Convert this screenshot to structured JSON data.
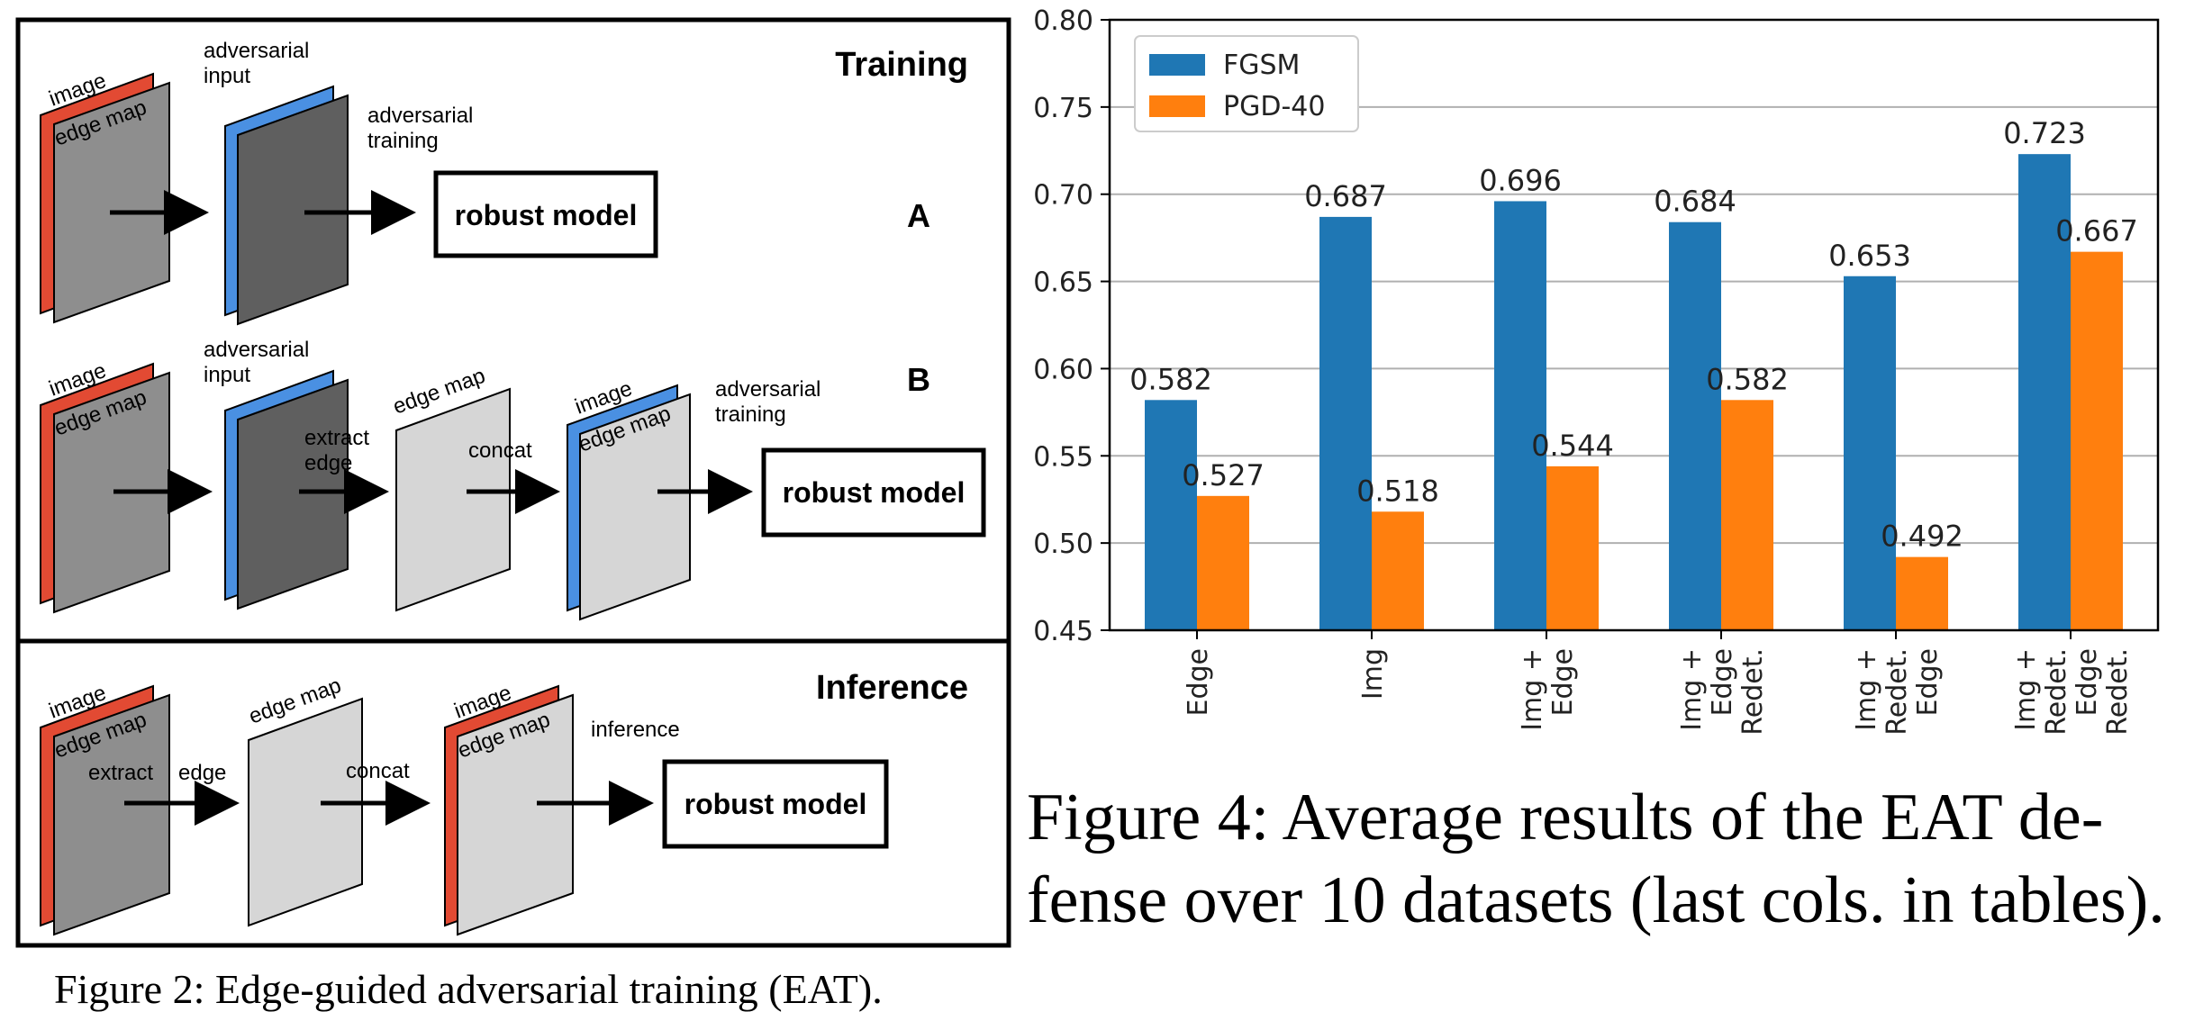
{
  "figure2": {
    "caption": "Figure 2: Edge-guided adversarial training (EAT).",
    "training": {
      "title": "Training",
      "row_a": {
        "tag": "A",
        "image_label": "image",
        "edge_label": "edge map",
        "adv_input_label_1": "adversarial",
        "adv_input_label_2": "input",
        "train_label_1": "adversarial",
        "train_label_2": "training",
        "model_label": "robust model"
      },
      "row_b": {
        "tag": "B",
        "image_label": "image",
        "edge_label": "edge map",
        "adv_input_label_1": "adversarial",
        "adv_input_label_2": "input",
        "extract_label_1": "extract",
        "extract_label_2": "edge",
        "edge_map_label": "edge map",
        "concat_label": "concat",
        "concat_image_label": "image",
        "concat_edge_label": "edge map",
        "train_label_1": "adversarial",
        "train_label_2": "training",
        "model_label": "robust model"
      }
    },
    "inference": {
      "title": "Inference",
      "image_label": "image",
      "edge_label": "edge map",
      "extract_label": "extract",
      "edge_word": "edge",
      "edge_map_label": "edge map",
      "concat_label": "concat",
      "concat_image_label": "image",
      "concat_edge_label": "edge map",
      "inference_label": "inference",
      "model_label": "robust model"
    }
  },
  "figure4": {
    "caption_line1": "Figure 4:  Average results of the EAT de-",
    "caption_line2": "fense over 10 datasets (last cols. in tables)."
  },
  "colors": {
    "fgsm": "#1f77b4",
    "pgd": "#ff7f0e",
    "red_layer": "#e24a33",
    "blue_layer": "#4a90e2",
    "gray_panel": "#8e8e8e",
    "dark_panel": "#5f5f5f",
    "light_panel": "#d6d6d6"
  },
  "chart_data": {
    "type": "bar",
    "categories": [
      [
        "Edge"
      ],
      [
        "Img"
      ],
      [
        "Img +",
        "Edge"
      ],
      [
        "Img +",
        "Edge",
        "Redet."
      ],
      [
        "Img +",
        "Redet.",
        "Edge"
      ],
      [
        "Img +",
        "Redet.",
        "Edge",
        "Redet."
      ]
    ],
    "series": [
      {
        "name": "FGSM",
        "values": [
          0.582,
          0.687,
          0.696,
          0.684,
          0.653,
          0.723
        ]
      },
      {
        "name": "PGD-40",
        "values": [
          0.527,
          0.518,
          0.544,
          0.582,
          0.492,
          0.667
        ]
      }
    ],
    "data_labels": [
      [
        "0.582",
        "0.687",
        "0.696",
        "0.684",
        "0.653",
        "0.723"
      ],
      [
        "0.527",
        "0.518",
        "0.544",
        "0.582",
        "0.492",
        "0.667"
      ]
    ],
    "yticks": [
      "0.45",
      "0.50",
      "0.55",
      "0.60",
      "0.65",
      "0.70",
      "0.75",
      "0.80"
    ],
    "ylim": [
      0.45,
      0.8
    ],
    "grid": true,
    "legend": "top-left"
  }
}
